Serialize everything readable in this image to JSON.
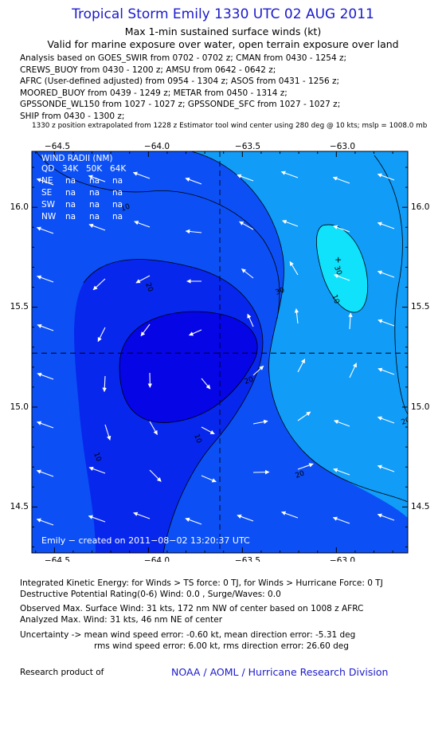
{
  "header": {
    "title": "Tropical Storm Emily 1330 UTC 02 AUG 2011",
    "subtitle": "Max 1-min sustained surface winds (kt)",
    "valid_line": "Valid for marine exposure over water, open terrain exposure over land"
  },
  "analysis_lines": [
    "Analysis based on GOES_SWIR from 0702 - 0702 z; CMAN from 0430 - 1254 z;",
    "CREWS_BUOY from 0430 - 1200 z; AMSU from 0642 - 0642 z;",
    "AFRC (User-defined adjusted) from 0954 - 1304 z; ASOS from 0431 - 1256 z;",
    "MOORED_BUOY from 0439 - 1249 z; METAR from 0450 - 1314 z;",
    "GPSSONDE_WL150 from 1027 - 1027 z; GPSSONDE_SFC from 1027 - 1027 z;",
    "SHIP from 0430 - 1300 z;"
  ],
  "position_note": "1330 z position extrapolated from 1228 z Estimator tool wind center using 280 deg @ 10 kts; mslp = 1008.0 mb",
  "map": {
    "lon_labels": [
      "−64.5",
      "−64.0",
      "−63.5",
      "−63.0"
    ],
    "lon_values": [
      -64.5,
      -64.0,
      -63.5,
      -63.0
    ],
    "lat_labels": [
      "16.0",
      "15.5",
      "15.0",
      "14.5"
    ],
    "lat_values": [
      16.0,
      15.5,
      15.0,
      14.5
    ],
    "lon_range": [
      -64.62,
      -62.62
    ],
    "lat_range": [
      14.27,
      16.28
    ],
    "center": {
      "lon": -63.62,
      "lat": 15.27
    },
    "max_wind_marker": {
      "lon": -62.99,
      "lat": 15.74
    },
    "wind_radii": {
      "title": "WIND RADII (NM)",
      "headers": [
        "QD",
        "34K",
        "50K",
        "64K"
      ],
      "rows": [
        [
          "NE",
          "na",
          "na",
          "na"
        ],
        [
          "SE",
          "na",
          "na",
          "na"
        ],
        [
          "SW",
          "na",
          "na",
          "na"
        ],
        [
          "NW",
          "na",
          "na",
          "na"
        ]
      ]
    },
    "contour_labels": [
      "10",
      "20",
      "30",
      "10",
      "20",
      "10",
      "20",
      "10",
      "20",
      "30"
    ],
    "credit": "Emily − created on 2011−08−02 13:20:37 UTC",
    "colors": {
      "lt10": "#0505e6",
      "b10_20": "#0c50f5",
      "b20_30": "#119cf8",
      "gt30": "#10e2fb",
      "lines": "#000000",
      "labels": "#ffffff"
    }
  },
  "info": {
    "ike": "Integrated Kinetic Energy:  for Winds > TS force: 0 TJ,  for Winds > Hurricane Force: 0 TJ",
    "dpr": "Destructive Potential Rating(0-6)   Wind: 0.0 , Surge/Waves: 0.0",
    "observed": "Observed Max. Surface Wind: 31 kts, 172 nm NW of center based on 1008 z AFRC",
    "analyzed": "Analyzed Max. Wind: 31 kts, 46 nm NE of center",
    "uncertainty1": "Uncertainty -> mean wind speed error:  -0.60 kt,   mean direction error:  -5.31 deg",
    "uncertainty2": "rms wind speed error: 6.00 kt,   rms direction error: 26.60 deg"
  },
  "footer": {
    "left": "Research product of",
    "right": "NOAA / AOML / Hurricane Research Division"
  }
}
